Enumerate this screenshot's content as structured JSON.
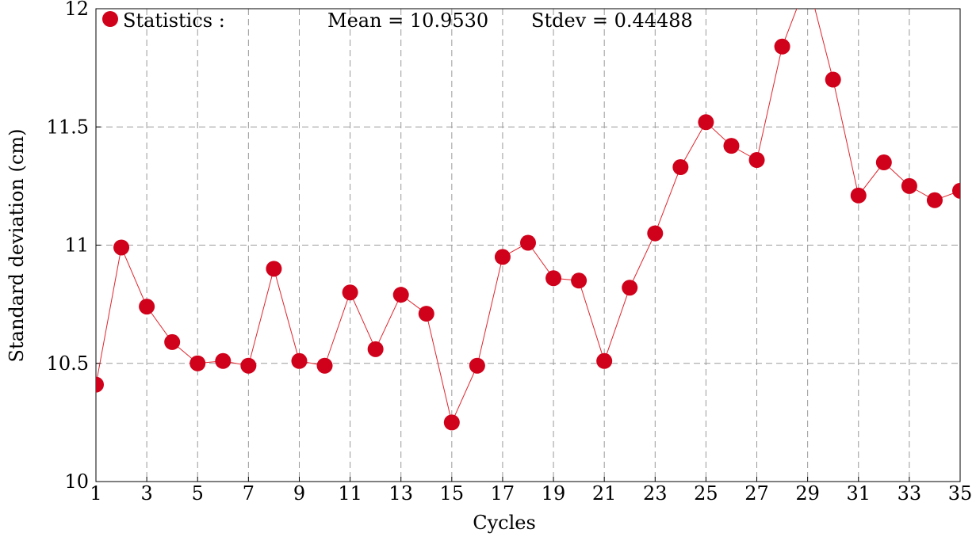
{
  "chart_data": {
    "type": "scatter",
    "title": "",
    "xlabel": "Cycles",
    "ylabel": "Standard deviation (cm)",
    "xlim": [
      1,
      35
    ],
    "ylim": [
      10,
      12
    ],
    "xticks": [
      1,
      3,
      5,
      7,
      9,
      11,
      13,
      15,
      17,
      19,
      21,
      23,
      25,
      27,
      29,
      31,
      33,
      35
    ],
    "xtick_labels": [
      "1",
      "3",
      "5",
      "7",
      "9",
      "11",
      "13",
      "15",
      "17",
      "19",
      "21",
      "23",
      "25",
      "27",
      "29",
      "31",
      "33",
      "35"
    ],
    "yticks": [
      10,
      10.5,
      11,
      11.5,
      12
    ],
    "ytick_labels": [
      "10",
      "10.5",
      "11",
      "11.5",
      "12"
    ],
    "grid": true,
    "grid_style": "dashed",
    "marker_color": "#d0021b",
    "line_color": "#e0242c",
    "legend": {
      "label": "Statistics :",
      "placement": "top-left",
      "mean_text": "Mean = 10.9530",
      "stdev_text": "Stdev = 0.44488"
    },
    "series": [
      {
        "x": [
          1,
          2,
          3,
          4,
          5,
          6,
          7,
          8,
          9,
          10,
          11,
          12,
          13,
          14,
          15,
          16,
          17,
          18,
          19,
          20,
          21,
          22,
          23,
          24,
          25,
          26,
          27,
          28,
          29,
          30,
          31,
          32,
          33,
          34,
          35
        ],
        "values": [
          10.41,
          10.99,
          10.74,
          10.59,
          10.5,
          10.51,
          10.49,
          10.9,
          10.51,
          10.49,
          10.8,
          10.56,
          10.79,
          10.71,
          10.25,
          10.49,
          10.95,
          11.01,
          10.86,
          10.85,
          10.51,
          10.82,
          11.05,
          11.33,
          11.52,
          11.42,
          11.36,
          11.84,
          12.12,
          11.7,
          11.21,
          11.35,
          11.25,
          11.19,
          11.23
        ]
      }
    ]
  }
}
